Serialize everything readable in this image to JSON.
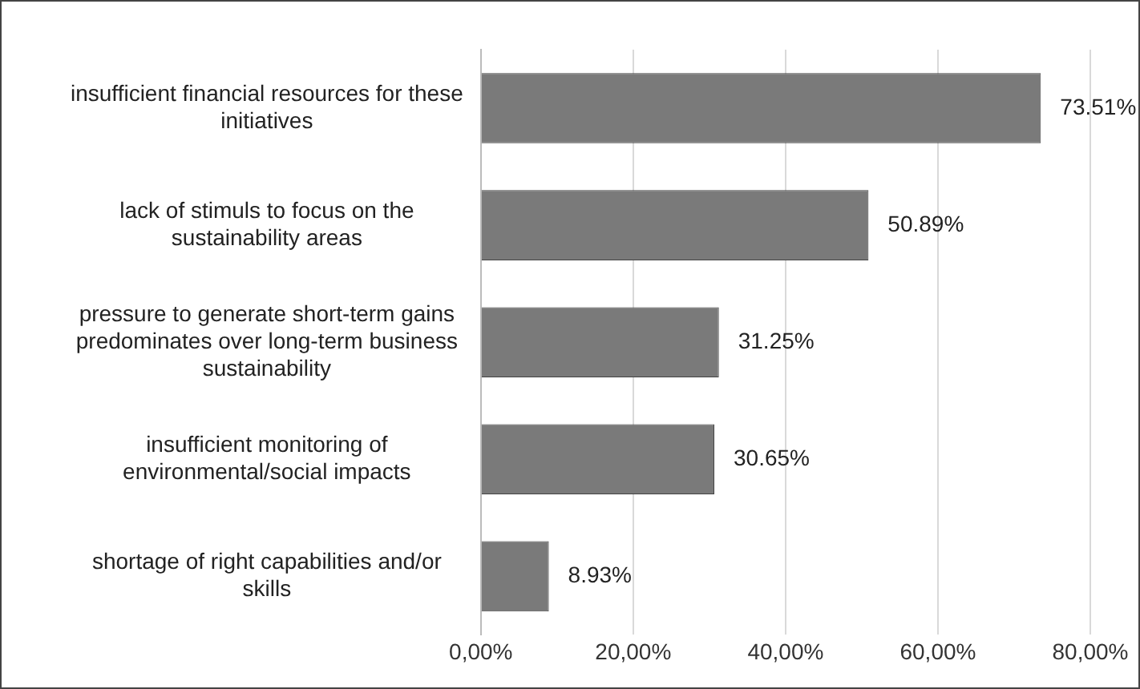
{
  "chart_data": {
    "type": "bar",
    "orientation": "horizontal",
    "categories": [
      "insufficient financial resources for these initiatives",
      "lack of stimuls to focus on the sustainability areas",
      "pressure to generate short-term gains predominates over long-term business sustainability",
      "insufficient monitoring of environmental/social impacts",
      "shortage of right capabilities and/or skills"
    ],
    "values": [
      73.51,
      50.89,
      31.25,
      30.65,
      8.93
    ],
    "value_labels": [
      "73.51%",
      "50.89%",
      "31.25%",
      "30.65%",
      "8.93%"
    ],
    "color": "#7a7a7a",
    "xlim": [
      0,
      80
    ],
    "xticks": [
      {
        "value": 0,
        "label": "0,00%"
      },
      {
        "value": 20,
        "label": "20,00%"
      },
      {
        "value": 40,
        "label": "40,00%"
      },
      {
        "value": 60,
        "label": "60,00%"
      },
      {
        "value": 80,
        "label": "80,00%"
      }
    ],
    "grid": "x",
    "legend": false
  }
}
